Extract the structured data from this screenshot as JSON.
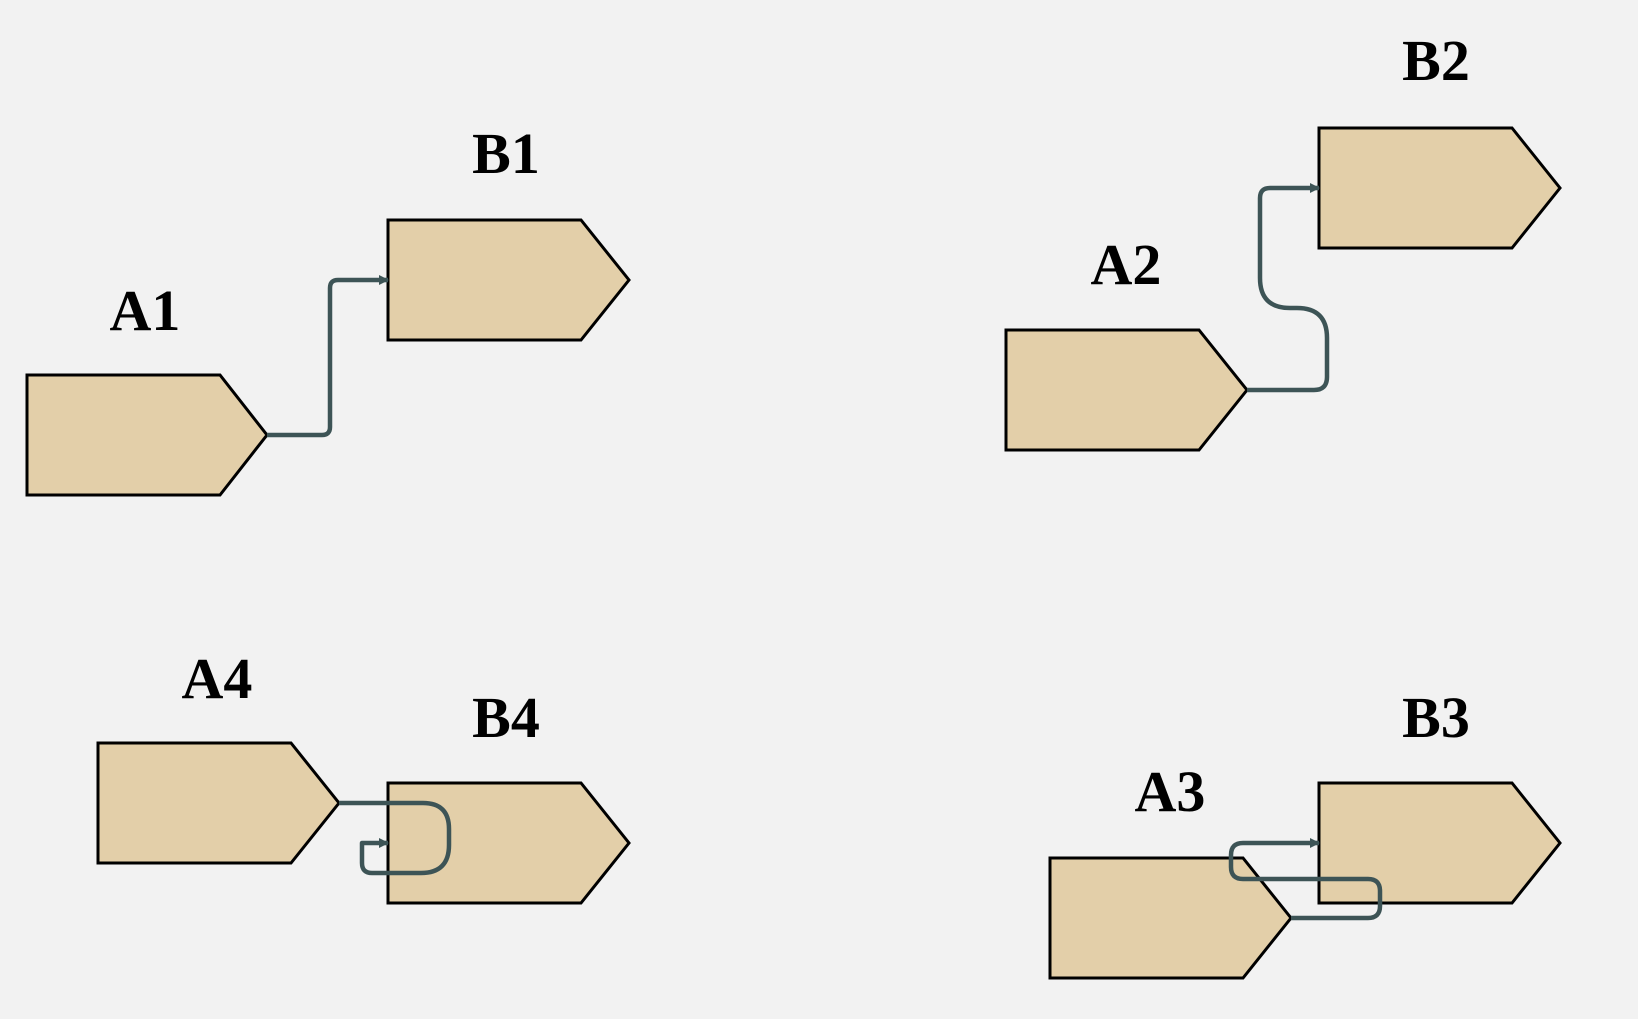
{
  "colors": {
    "background": "#f2f2f2",
    "node_fill": "#e3cfa9",
    "node_stroke": "#000000",
    "connector": "#3d5456"
  },
  "nodes": {
    "a1": {
      "label": "A1"
    },
    "b1": {
      "label": "B1"
    },
    "a2": {
      "label": "A2"
    },
    "b2": {
      "label": "B2"
    },
    "a3": {
      "label": "A3"
    },
    "b3": {
      "label": "B3"
    },
    "a4": {
      "label": "A4"
    },
    "b4": {
      "label": "B4"
    }
  },
  "connections": [
    {
      "from": "A1",
      "to": "B1"
    },
    {
      "from": "A2",
      "to": "B2"
    },
    {
      "from": "A3",
      "to": "B3"
    },
    {
      "from": "A4",
      "to": "B4"
    }
  ]
}
